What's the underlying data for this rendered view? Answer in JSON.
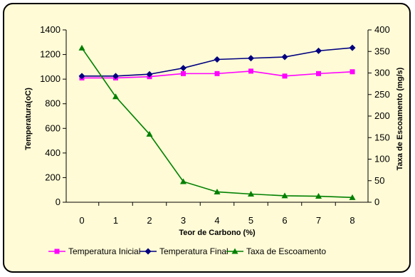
{
  "chart_data": {
    "type": "line",
    "title": "",
    "xlabel": "Teor de Carbono (%)",
    "ylabel": "Temperatura(oC)",
    "y2label": "Taxa de Escoamento (mg/s)",
    "x": [
      0,
      1,
      2,
      3,
      4,
      5,
      6,
      7,
      8
    ],
    "ylim": [
      0,
      1400
    ],
    "y2lim": [
      0,
      400
    ],
    "yticks": [
      0,
      200,
      400,
      600,
      800,
      1000,
      1200,
      1400
    ],
    "y2ticks": [
      0,
      50,
      100,
      150,
      200,
      250,
      300,
      350,
      400
    ],
    "grid": false,
    "legend_position": "bottom",
    "series": [
      {
        "name": "Temperatura Inicial",
        "axis": "left",
        "color": "#ff00ff",
        "marker": "square",
        "values": [
          1010,
          1010,
          1020,
          1045,
          1045,
          1065,
          1025,
          1045,
          1060
        ]
      },
      {
        "name": "Temperatura Final",
        "axis": "left",
        "color": "#000080",
        "marker": "diamond",
        "values": [
          1025,
          1025,
          1040,
          1090,
          1160,
          1170,
          1180,
          1230,
          1255
        ]
      },
      {
        "name": "Taxa de Escoamento",
        "axis": "right",
        "color": "#008000",
        "marker": "triangle",
        "values": [
          358,
          245,
          158,
          48,
          24,
          19,
          15,
          14,
          11
        ]
      }
    ]
  }
}
